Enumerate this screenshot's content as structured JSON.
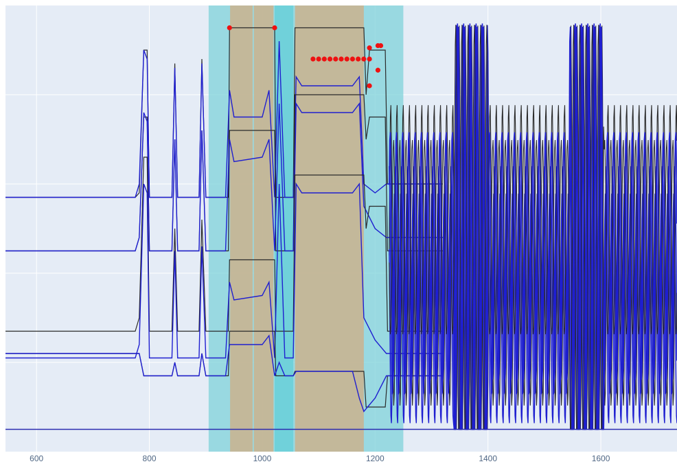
{
  "chart_data": {
    "type": "line",
    "title": "",
    "xlabel": "",
    "ylabel": "",
    "xlim": [
      545,
      1735
    ],
    "ylim": [
      0,
      100
    ],
    "x_ticks": [
      600,
      800,
      1000,
      1200,
      1400,
      1600
    ],
    "x_tick_labels": [
      "600",
      "800",
      "1000",
      "1200",
      "1400",
      "1600"
    ],
    "grid": true,
    "legend": "none",
    "colors": {
      "background": "#e5ecf6",
      "grid": "#ffffff",
      "band_cyan": "#7fd3da",
      "band_tan": "#c8b492",
      "signal_black": "#2a2a2a",
      "signal_blue": "#1f1fd0",
      "marker_red": "#ee1111",
      "baseline": "#2b2bb0"
    },
    "shaded_regions": [
      {
        "x0": 905,
        "x1": 1250,
        "kind": "cyan"
      },
      {
        "x0": 943,
        "x1": 983,
        "kind": "tan"
      },
      {
        "x0": 985,
        "x1": 1020,
        "kind": "tan"
      },
      {
        "x0": 1058,
        "x1": 1180,
        "kind": "tan"
      },
      {
        "x0": 1022,
        "x1": 1055,
        "kind": "cyan-strong"
      }
    ],
    "red_markers": [
      {
        "x": 942,
        "y": 95
      },
      {
        "x": 1022,
        "y": 95
      },
      {
        "x": 1090,
        "y": 88
      },
      {
        "x": 1100,
        "y": 88
      },
      {
        "x": 1110,
        "y": 88
      },
      {
        "x": 1120,
        "y": 88
      },
      {
        "x": 1130,
        "y": 88
      },
      {
        "x": 1140,
        "y": 88
      },
      {
        "x": 1150,
        "y": 88
      },
      {
        "x": 1160,
        "y": 88
      },
      {
        "x": 1170,
        "y": 88
      },
      {
        "x": 1180,
        "y": 88
      },
      {
        "x": 1190,
        "y": 88
      },
      {
        "x": 1190,
        "y": 90.5
      },
      {
        "x": 1205,
        "y": 91
      },
      {
        "x": 1210,
        "y": 91
      },
      {
        "x": 1205,
        "y": 85.5
      },
      {
        "x": 1190,
        "y": 82
      }
    ],
    "baseline_y": 5,
    "series": [
      {
        "color": "black",
        "points": [
          [
            545,
            57
          ],
          [
            775,
            57
          ],
          [
            782,
            58
          ],
          [
            790,
            90
          ],
          [
            796,
            90
          ],
          [
            800,
            57
          ],
          [
            840,
            57
          ],
          [
            845,
            87
          ],
          [
            850,
            57
          ],
          [
            888,
            57
          ],
          [
            893,
            88
          ],
          [
            900,
            57
          ],
          [
            905,
            57
          ],
          [
            940,
            57
          ],
          [
            942,
            95
          ],
          [
            1022,
            95
          ],
          [
            1024,
            57
          ],
          [
            1055,
            57
          ],
          [
            1058,
            95
          ],
          [
            1180,
            95
          ],
          [
            1184,
            80
          ],
          [
            1190,
            90
          ],
          [
            1218,
            90
          ],
          [
            1222,
            60
          ],
          [
            1320,
            60
          ]
        ]
      },
      {
        "color": "blue",
        "points": [
          [
            545,
            57
          ],
          [
            775,
            57
          ],
          [
            782,
            60
          ],
          [
            790,
            90
          ],
          [
            796,
            88
          ],
          [
            800,
            57
          ],
          [
            840,
            57
          ],
          [
            845,
            86
          ],
          [
            850,
            57
          ],
          [
            888,
            57
          ],
          [
            893,
            87
          ],
          [
            900,
            57
          ],
          [
            905,
            57
          ],
          [
            935,
            57
          ],
          [
            942,
            81
          ],
          [
            950,
            75
          ],
          [
            1000,
            75
          ],
          [
            1012,
            81
          ],
          [
            1022,
            57
          ],
          [
            1030,
            92
          ],
          [
            1040,
            57
          ],
          [
            1055,
            57
          ],
          [
            1060,
            84
          ],
          [
            1070,
            82
          ],
          [
            1160,
            82
          ],
          [
            1172,
            84
          ],
          [
            1180,
            60
          ],
          [
            1200,
            58
          ],
          [
            1220,
            60
          ],
          [
            1320,
            60
          ]
        ]
      },
      {
        "color": "black",
        "points": [
          [
            545,
            45
          ],
          [
            775,
            45
          ],
          [
            782,
            48
          ],
          [
            790,
            75
          ],
          [
            796,
            75
          ],
          [
            800,
            45
          ],
          [
            840,
            45
          ],
          [
            845,
            70
          ],
          [
            850,
            45
          ],
          [
            888,
            45
          ],
          [
            893,
            72
          ],
          [
            900,
            45
          ],
          [
            905,
            45
          ],
          [
            940,
            45
          ],
          [
            942,
            72
          ],
          [
            1022,
            72
          ],
          [
            1024,
            45
          ],
          [
            1055,
            45
          ],
          [
            1058,
            80
          ],
          [
            1180,
            80
          ],
          [
            1184,
            70
          ],
          [
            1190,
            75
          ],
          [
            1218,
            75
          ],
          [
            1222,
            45
          ],
          [
            1320,
            45
          ]
        ]
      },
      {
        "color": "blue",
        "points": [
          [
            545,
            45
          ],
          [
            775,
            45
          ],
          [
            782,
            48
          ],
          [
            790,
            76
          ],
          [
            796,
            74
          ],
          [
            800,
            45
          ],
          [
            840,
            45
          ],
          [
            845,
            70
          ],
          [
            850,
            45
          ],
          [
            888,
            45
          ],
          [
            893,
            72
          ],
          [
            900,
            45
          ],
          [
            905,
            45
          ],
          [
            935,
            45
          ],
          [
            942,
            70
          ],
          [
            950,
            65
          ],
          [
            1000,
            66
          ],
          [
            1012,
            70
          ],
          [
            1022,
            45
          ],
          [
            1030,
            78
          ],
          [
            1040,
            45
          ],
          [
            1055,
            45
          ],
          [
            1060,
            78
          ],
          [
            1070,
            76
          ],
          [
            1160,
            76
          ],
          [
            1172,
            78
          ],
          [
            1180,
            55
          ],
          [
            1200,
            50
          ],
          [
            1220,
            48
          ],
          [
            1320,
            48
          ]
        ]
      },
      {
        "color": "black",
        "points": [
          [
            545,
            27
          ],
          [
            775,
            27
          ],
          [
            782,
            30
          ],
          [
            790,
            66
          ],
          [
            796,
            66
          ],
          [
            800,
            27
          ],
          [
            840,
            27
          ],
          [
            845,
            50
          ],
          [
            850,
            27
          ],
          [
            888,
            27
          ],
          [
            893,
            52
          ],
          [
            900,
            27
          ],
          [
            905,
            27
          ],
          [
            940,
            27
          ],
          [
            942,
            43
          ],
          [
            1022,
            43
          ],
          [
            1024,
            27
          ],
          [
            1055,
            27
          ],
          [
            1058,
            62
          ],
          [
            1180,
            62
          ],
          [
            1184,
            50
          ],
          [
            1190,
            55
          ],
          [
            1218,
            55
          ],
          [
            1222,
            27
          ],
          [
            1320,
            27
          ]
        ]
      },
      {
        "color": "blue",
        "points": [
          [
            545,
            21
          ],
          [
            775,
            21
          ],
          [
            782,
            24
          ],
          [
            790,
            60
          ],
          [
            796,
            58
          ],
          [
            800,
            21
          ],
          [
            840,
            21
          ],
          [
            845,
            45
          ],
          [
            850,
            21
          ],
          [
            888,
            21
          ],
          [
            893,
            46
          ],
          [
            900,
            21
          ],
          [
            905,
            21
          ],
          [
            935,
            21
          ],
          [
            942,
            38
          ],
          [
            950,
            34
          ],
          [
            1000,
            35
          ],
          [
            1012,
            38
          ],
          [
            1022,
            21
          ],
          [
            1030,
            60
          ],
          [
            1040,
            21
          ],
          [
            1055,
            21
          ],
          [
            1060,
            60
          ],
          [
            1070,
            58
          ],
          [
            1160,
            58
          ],
          [
            1172,
            60
          ],
          [
            1180,
            30
          ],
          [
            1200,
            25
          ],
          [
            1220,
            22
          ],
          [
            1320,
            22
          ]
        ]
      },
      {
        "color": "black",
        "points": [
          [
            545,
            22
          ],
          [
            775,
            22
          ],
          [
            782,
            22
          ],
          [
            790,
            17
          ],
          [
            800,
            17
          ],
          [
            840,
            17
          ],
          [
            845,
            20
          ],
          [
            850,
            17
          ],
          [
            888,
            17
          ],
          [
            893,
            22
          ],
          [
            900,
            17
          ],
          [
            905,
            17
          ],
          [
            940,
            17
          ],
          [
            942,
            27
          ],
          [
            1022,
            27
          ],
          [
            1024,
            17
          ],
          [
            1055,
            17
          ],
          [
            1058,
            18
          ],
          [
            1180,
            18
          ],
          [
            1184,
            10
          ],
          [
            1218,
            10
          ],
          [
            1222,
            17
          ],
          [
            1320,
            17
          ]
        ]
      },
      {
        "color": "blue",
        "points": [
          [
            545,
            22
          ],
          [
            775,
            22
          ],
          [
            782,
            22
          ],
          [
            790,
            17
          ],
          [
            800,
            17
          ],
          [
            840,
            17
          ],
          [
            845,
            20
          ],
          [
            850,
            17
          ],
          [
            888,
            17
          ],
          [
            893,
            22
          ],
          [
            900,
            17
          ],
          [
            905,
            17
          ],
          [
            935,
            17
          ],
          [
            942,
            24
          ],
          [
            1000,
            24
          ],
          [
            1012,
            26
          ],
          [
            1022,
            17
          ],
          [
            1030,
            20
          ],
          [
            1040,
            17
          ],
          [
            1055,
            17
          ],
          [
            1060,
            18
          ],
          [
            1160,
            18
          ],
          [
            1172,
            12
          ],
          [
            1180,
            9
          ],
          [
            1200,
            12
          ],
          [
            1220,
            17
          ],
          [
            1320,
            17
          ]
        ]
      }
    ],
    "oscillation": {
      "x_start": 1225,
      "x_end": 1735,
      "period": 11,
      "bursts": [
        [
          1340,
          1400
        ],
        [
          1545,
          1605
        ]
      ],
      "burst_peak_y": 96,
      "base_high_y": 78,
      "mid_y": 44,
      "low_y": 5
    }
  }
}
